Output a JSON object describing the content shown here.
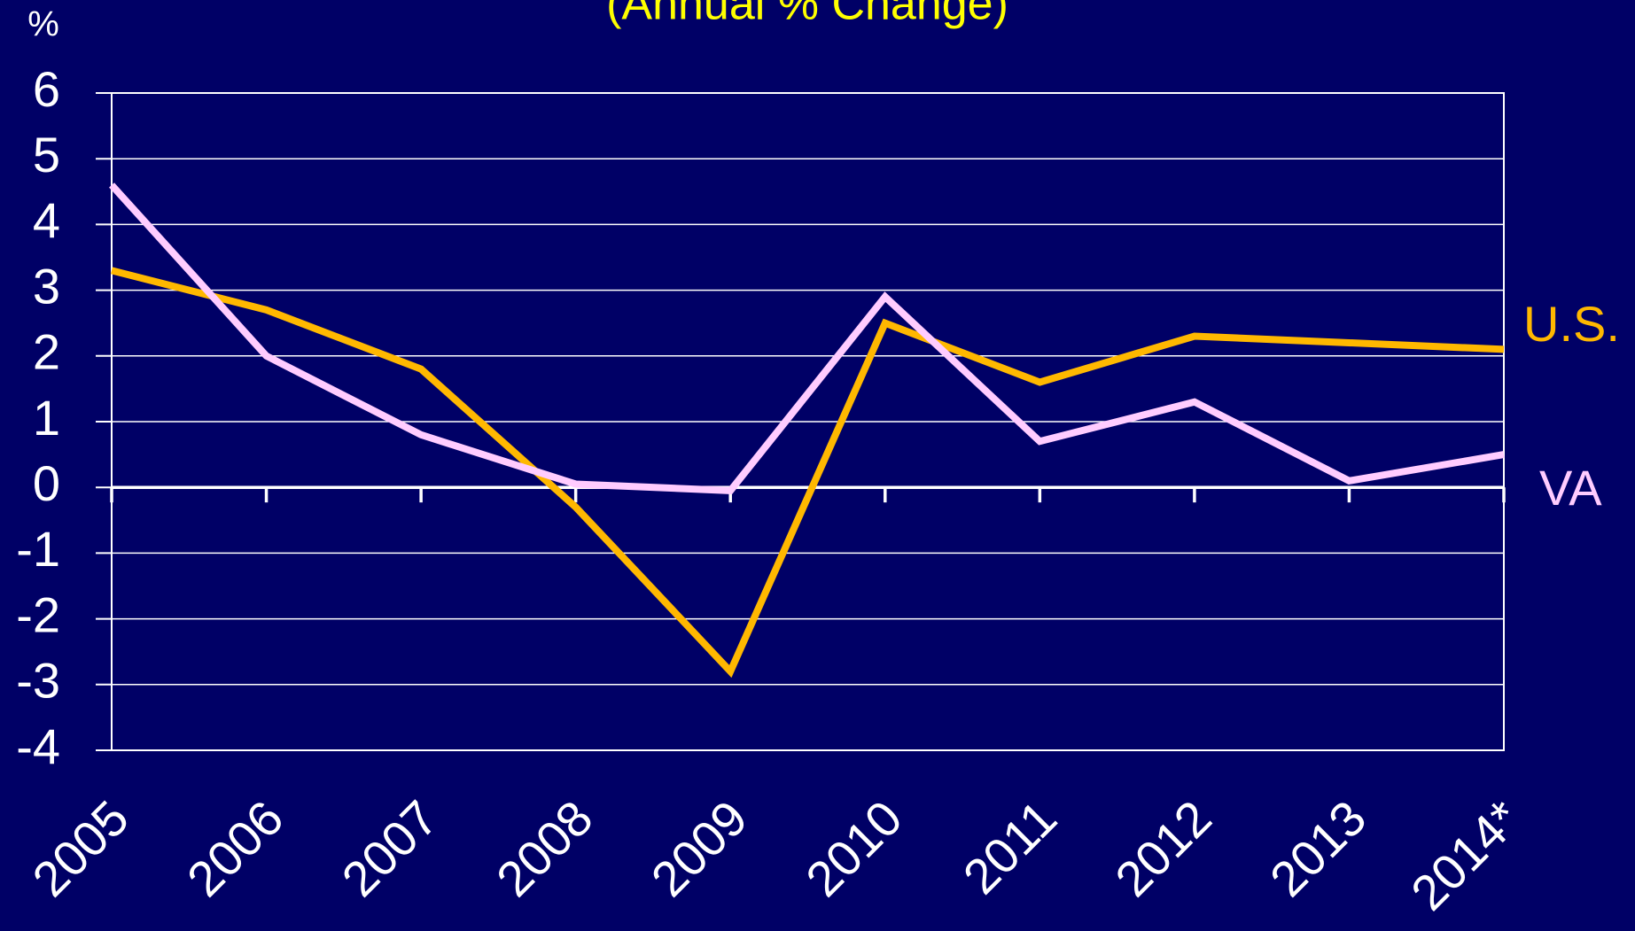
{
  "chart_data": {
    "type": "line",
    "title": "(Annual % Change)",
    "y_label": "%",
    "categories": [
      "2005",
      "2006",
      "2007",
      "2008",
      "2009",
      "2010",
      "2011",
      "2012",
      "2013",
      "2014*"
    ],
    "series": [
      {
        "name": "U.S.",
        "color": "#ffb800",
        "values": [
          3.3,
          2.7,
          1.8,
          -0.3,
          -2.8,
          2.5,
          1.6,
          2.3,
          2.2,
          2.1
        ]
      },
      {
        "name": "VA",
        "color": "#ffccff",
        "values": [
          4.6,
          2.0,
          0.8,
          0.05,
          -0.05,
          2.9,
          0.7,
          1.3,
          0.1,
          0.5
        ]
      }
    ],
    "ylim": [
      -4,
      6
    ],
    "yticks": [
      -4,
      -3,
      -2,
      -1,
      0,
      1,
      2,
      3,
      4,
      5,
      6
    ],
    "grid": true
  }
}
